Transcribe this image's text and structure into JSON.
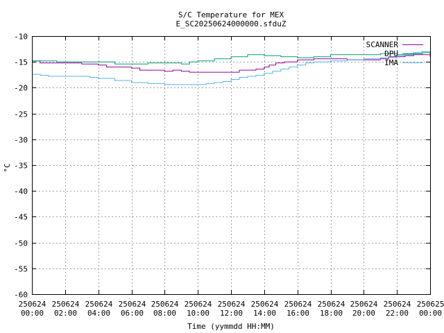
{
  "chart_data": {
    "type": "line",
    "title": "S/C Temperature for MEX",
    "subtitle": "E_SC20250624000000.sfduZ",
    "xlabel": "Time (yymmdd HH:MM)",
    "ylabel": "°C",
    "ylim": [
      -60,
      -10
    ],
    "xlim_hours": [
      0,
      24
    ],
    "y_ticks": [
      -10,
      -15,
      -20,
      -25,
      -30,
      -35,
      -40,
      -45,
      -50,
      -55,
      -60
    ],
    "x_ticks": [
      {
        "hour": 0,
        "date": "250624",
        "time": "00:00"
      },
      {
        "hour": 2,
        "date": "250624",
        "time": "02:00"
      },
      {
        "hour": 4,
        "date": "250624",
        "time": "04:00"
      },
      {
        "hour": 6,
        "date": "250624",
        "time": "06:00"
      },
      {
        "hour": 8,
        "date": "250624",
        "time": "08:00"
      },
      {
        "hour": 10,
        "date": "250624",
        "time": "10:00"
      },
      {
        "hour": 12,
        "date": "250624",
        "time": "12:00"
      },
      {
        "hour": 14,
        "date": "250624",
        "time": "14:00"
      },
      {
        "hour": 16,
        "date": "250624",
        "time": "16:00"
      },
      {
        "hour": 18,
        "date": "250624",
        "time": "18:00"
      },
      {
        "hour": 20,
        "date": "250624",
        "time": "20:00"
      },
      {
        "hour": 22,
        "date": "250624",
        "time": "22:00"
      },
      {
        "hour": 24,
        "date": "250625",
        "time": "00:00"
      }
    ],
    "grid": true,
    "legend_position": "top-right",
    "series": [
      {
        "name": "SCANNER",
        "color": "#94009f",
        "points": [
          [
            0,
            -14.8
          ],
          [
            0.5,
            -15.2
          ],
          [
            2,
            -15.2
          ],
          [
            3,
            -15.4
          ],
          [
            4,
            -15.6
          ],
          [
            4.5,
            -16.0
          ],
          [
            6,
            -16.2
          ],
          [
            6.5,
            -16.6
          ],
          [
            8,
            -16.8
          ],
          [
            8.5,
            -16.6
          ],
          [
            9,
            -16.8
          ],
          [
            9.5,
            -17.0
          ],
          [
            12,
            -17.0
          ],
          [
            12.5,
            -16.6
          ],
          [
            13.5,
            -16.4
          ],
          [
            14,
            -16.0
          ],
          [
            14.3,
            -15.6
          ],
          [
            14.7,
            -15.2
          ],
          [
            15.2,
            -15.0
          ],
          [
            16,
            -14.6
          ],
          [
            17,
            -14.4
          ],
          [
            18,
            -14.4
          ],
          [
            19,
            -14.6
          ],
          [
            20.5,
            -14.6
          ],
          [
            21,
            -14.4
          ],
          [
            21.5,
            -14.0
          ],
          [
            22.5,
            -13.8
          ],
          [
            23,
            -13.6
          ],
          [
            24,
            -14.0
          ]
        ]
      },
      {
        "name": "DPU",
        "color": "#009e73",
        "points": [
          [
            0,
            -14.8
          ],
          [
            1.5,
            -15.0
          ],
          [
            3,
            -15.0
          ],
          [
            5,
            -15.4
          ],
          [
            7,
            -15.2
          ],
          [
            8,
            -15.2
          ],
          [
            8.5,
            -15.2
          ],
          [
            9,
            -15.4
          ],
          [
            9.5,
            -15.0
          ],
          [
            10,
            -14.8
          ],
          [
            11,
            -14.4
          ],
          [
            12,
            -14.0
          ],
          [
            13,
            -13.6
          ],
          [
            14,
            -13.8
          ],
          [
            15,
            -14.0
          ],
          [
            16,
            -14.2
          ],
          [
            17,
            -14.0
          ],
          [
            18,
            -13.6
          ],
          [
            20,
            -13.6
          ],
          [
            21,
            -13.4
          ],
          [
            22,
            -13.6
          ],
          [
            23,
            -13.2
          ],
          [
            24,
            -13.6
          ]
        ]
      },
      {
        "name": "IMA",
        "color": "#56b4e9",
        "points": [
          [
            0,
            -17.4
          ],
          [
            0.5,
            -17.6
          ],
          [
            1,
            -17.8
          ],
          [
            2,
            -17.8
          ],
          [
            3,
            -17.8
          ],
          [
            3.5,
            -18.0
          ],
          [
            4,
            -18.2
          ],
          [
            5,
            -18.6
          ],
          [
            6,
            -19.0
          ],
          [
            7,
            -19.2
          ],
          [
            8,
            -19.4
          ],
          [
            9,
            -19.4
          ],
          [
            10,
            -19.4
          ],
          [
            10.5,
            -19.2
          ],
          [
            11,
            -19.0
          ],
          [
            11.5,
            -18.8
          ],
          [
            12,
            -18.4
          ],
          [
            12.5,
            -18.0
          ],
          [
            13,
            -17.8
          ],
          [
            13.5,
            -17.6
          ],
          [
            14,
            -17.2
          ],
          [
            14.5,
            -16.8
          ],
          [
            15,
            -16.4
          ],
          [
            15.5,
            -16.0
          ],
          [
            16,
            -15.6
          ],
          [
            16.5,
            -15.2
          ],
          [
            17,
            -15.0
          ],
          [
            18,
            -14.8
          ],
          [
            19,
            -14.6
          ],
          [
            20,
            -14.4
          ],
          [
            21,
            -14.2
          ],
          [
            22,
            -13.8
          ],
          [
            22.5,
            -13.4
          ],
          [
            23,
            -13.2
          ],
          [
            23.5,
            -13.0
          ],
          [
            24,
            -13.0
          ]
        ]
      }
    ]
  }
}
